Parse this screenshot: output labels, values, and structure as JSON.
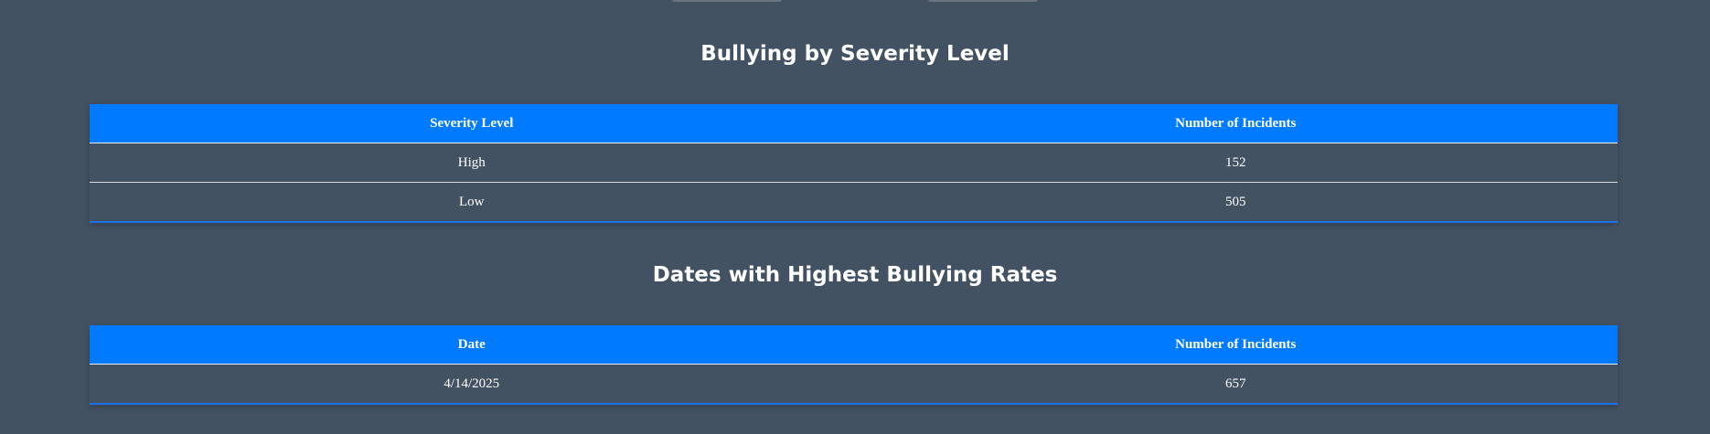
{
  "severity_section": {
    "title": "Bullying by Severity Level",
    "headers": [
      "Severity Level",
      "Number of Incidents"
    ],
    "rows": [
      [
        "High",
        "152"
      ],
      [
        "Low",
        "505"
      ]
    ]
  },
  "dates_section": {
    "title": "Dates with Highest Bullying Rates",
    "headers": [
      "Date",
      "Number of Incidents"
    ],
    "rows": [
      [
        "4/14/2025",
        "657"
      ]
    ]
  },
  "colors": {
    "background": "#435263",
    "header": "#007bff"
  }
}
